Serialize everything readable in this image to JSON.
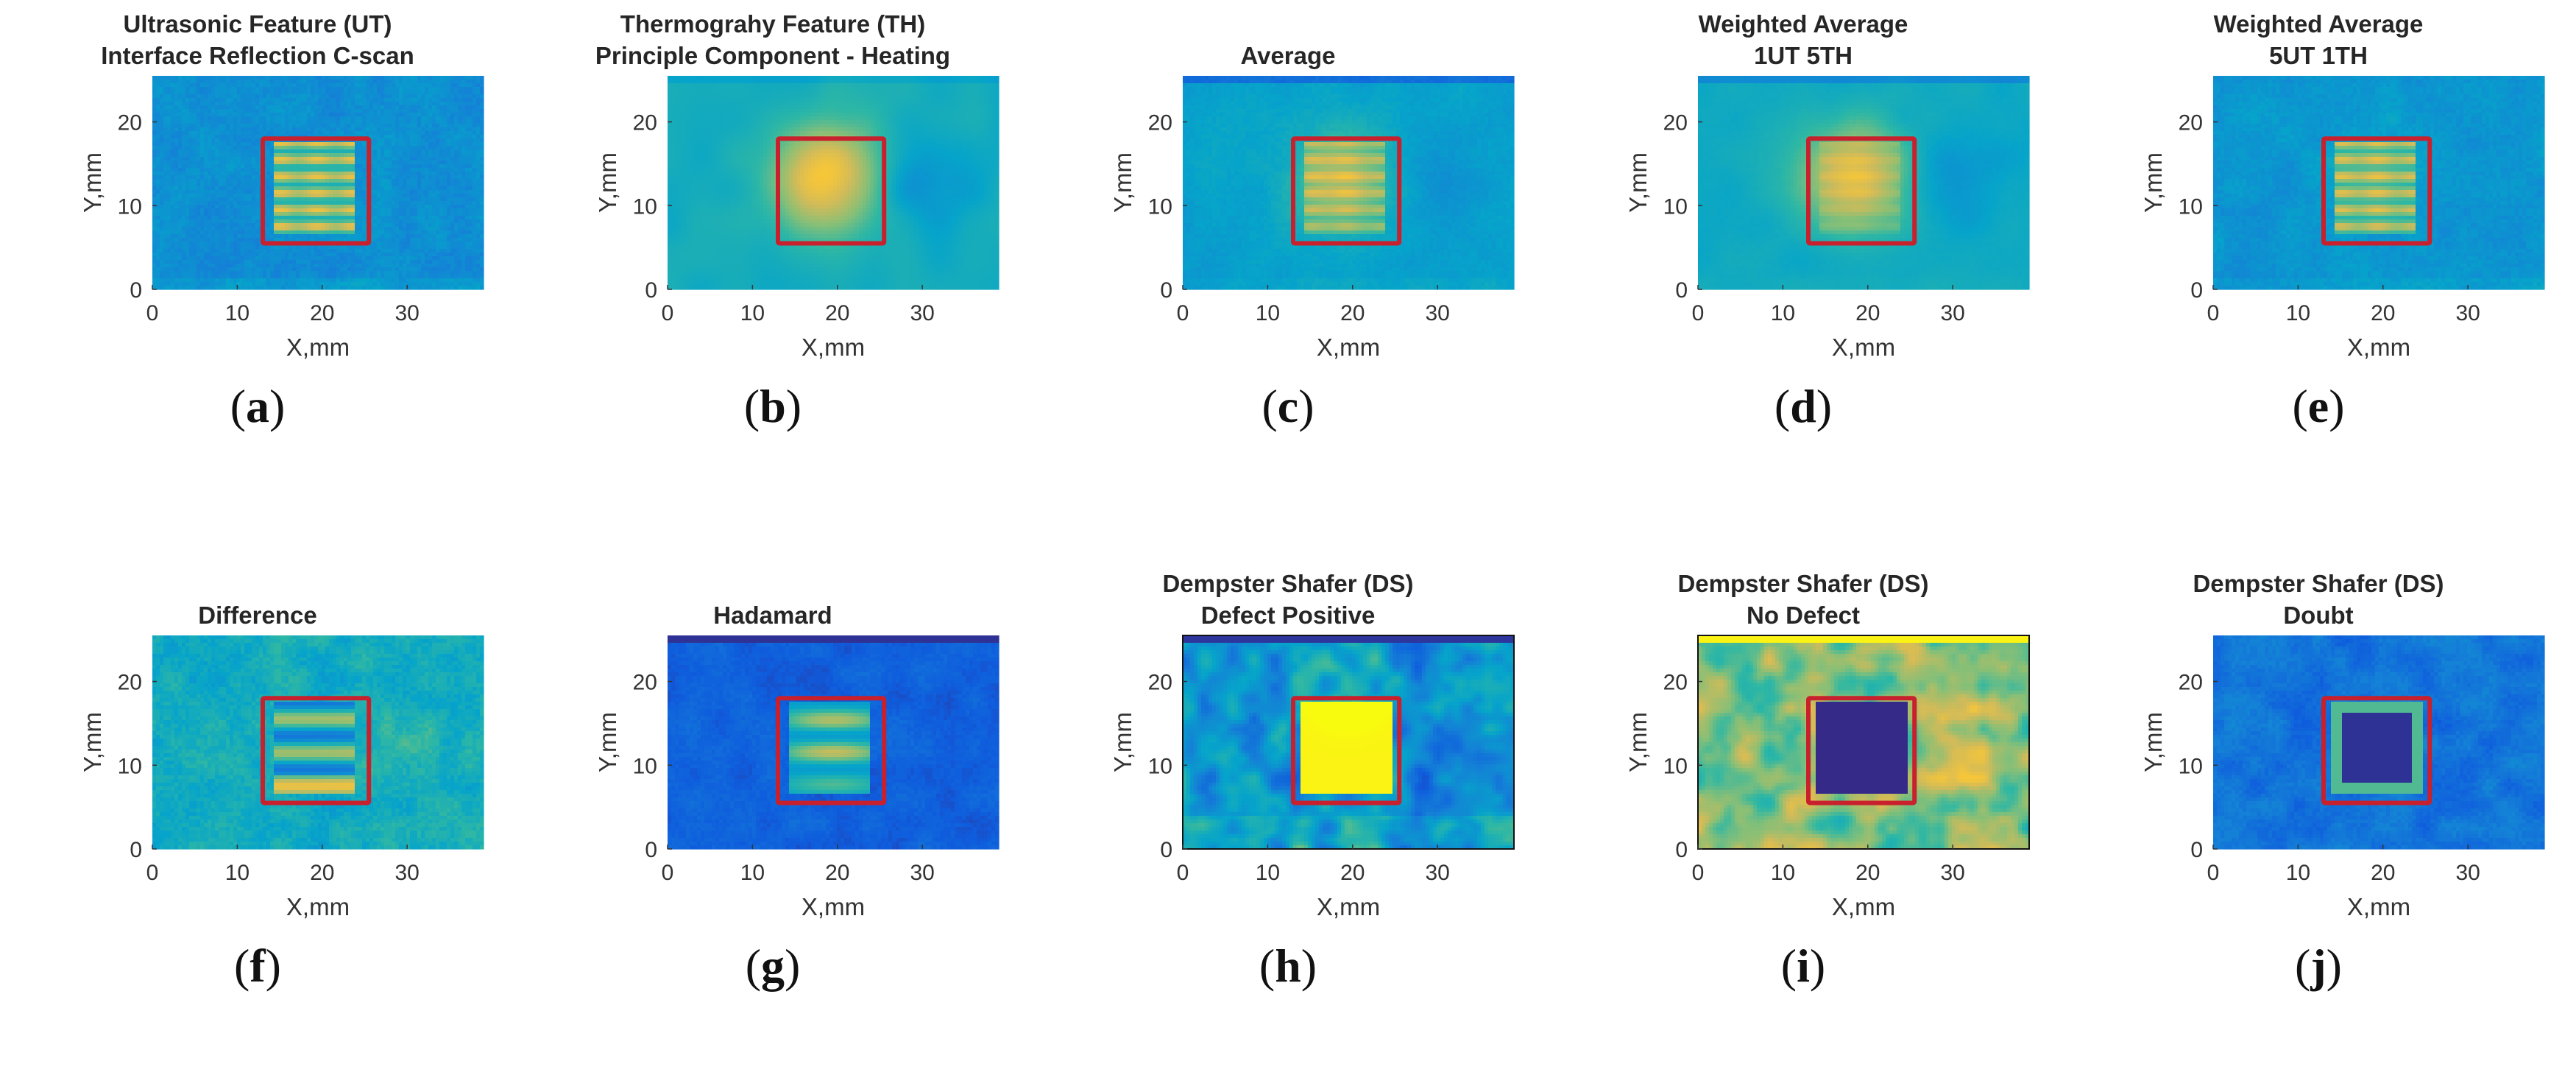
{
  "figure": {
    "panels": [
      {
        "letter": "a",
        "title_lines": [
          "Ultrasonic Feature (UT)",
          "Interface Reflection C-scan"
        ],
        "map": "ut",
        "border": false
      },
      {
        "letter": "b",
        "title_lines": [
          "Thermograhy Feature (TH)",
          "Principle Component - Heating"
        ],
        "map": "th",
        "border": false
      },
      {
        "letter": "c",
        "title_lines": [
          "Average"
        ],
        "map": "avg",
        "border": false
      },
      {
        "letter": "d",
        "title_lines": [
          "Weighted Average",
          "1UT 5TH"
        ],
        "map": "w15",
        "border": false
      },
      {
        "letter": "e",
        "title_lines": [
          "Weighted Average",
          "5UT 1TH"
        ],
        "map": "w51",
        "border": false
      },
      {
        "letter": "f",
        "title_lines": [
          "Difference"
        ],
        "map": "diff",
        "border": false
      },
      {
        "letter": "g",
        "title_lines": [
          "Hadamard"
        ],
        "map": "had",
        "border": false
      },
      {
        "letter": "h",
        "title_lines": [
          "Dempster Shafer (DS)",
          "Defect Positive"
        ],
        "map": "dsp",
        "border": true
      },
      {
        "letter": "i",
        "title_lines": [
          "Dempster Shafer (DS)",
          "No Defect"
        ],
        "map": "dsn",
        "border": true
      },
      {
        "letter": "j",
        "title_lines": [
          "Dempster Shafer (DS)",
          "Doubt"
        ],
        "map": "dsd",
        "border": false
      }
    ],
    "xlabel": "X,mm",
    "ylabel": "Y,mm",
    "xticks": [
      "0",
      "10",
      "20",
      "30"
    ],
    "yticks": [
      "0",
      "10",
      "20"
    ],
    "x_range_mm": [
      0,
      39
    ],
    "y_range_mm": [
      0,
      25.5
    ],
    "defect_box_mm": {
      "x": [
        13,
        25.5
      ],
      "y": [
        5.5,
        18
      ]
    },
    "defect_box_color": "#c8202c",
    "colormap": [
      "#352a87",
      "#0f5cdd",
      "#1481d6",
      "#06a4ca",
      "#2eb7a4",
      "#87bf77",
      "#d1bb59",
      "#fec832",
      "#f9fb0e"
    ]
  }
}
